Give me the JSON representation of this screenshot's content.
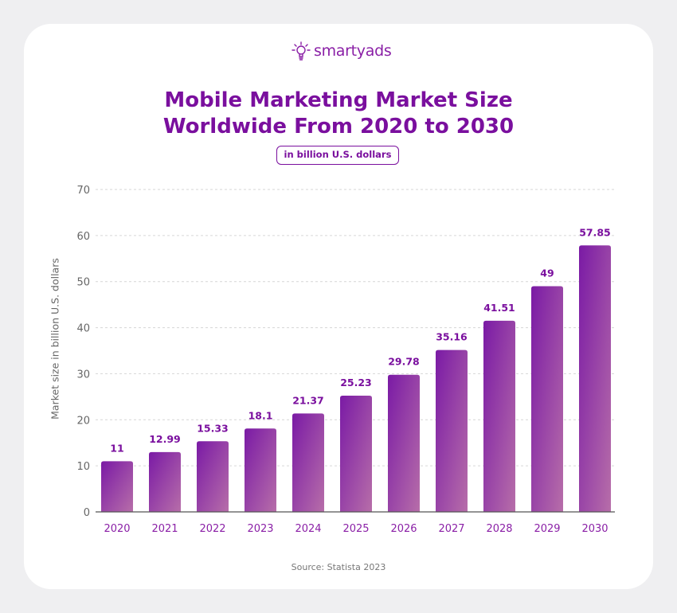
{
  "brand": {
    "name": "smartyads",
    "logo_icon": "lightbulb-icon"
  },
  "title_lines": [
    "Mobile Marketing Market Size",
    "Worldwide From 2020 to 2030"
  ],
  "subtitle": "in billion U.S. dollars",
  "source": "Source: Statista 2023",
  "colors": {
    "title": "#7a0f9e",
    "bar_start": "#7a1aa5",
    "bar_end": "#b76ea9",
    "axis_label": "#8a1fa6"
  },
  "chart_data": {
    "type": "bar",
    "categories": [
      "2020",
      "2021",
      "2022",
      "2023",
      "2024",
      "2025",
      "2026",
      "2027",
      "2028",
      "2029",
      "2030"
    ],
    "values": [
      11,
      12.99,
      15.33,
      18.1,
      21.37,
      25.23,
      29.78,
      35.16,
      41.51,
      49,
      57.85
    ],
    "data_labels": [
      "11",
      "12.99",
      "15.33",
      "18.1",
      "21.37",
      "25.23",
      "29.78",
      "35.16",
      "41.51",
      "49",
      "57.85"
    ],
    "xlabel": "",
    "ylabel": "Market size in billion U.S. dollars",
    "ylim": [
      0,
      70
    ],
    "yticks": [
      "0",
      "10",
      "20",
      "30",
      "40",
      "50",
      "60",
      "70"
    ],
    "grid": true
  }
}
